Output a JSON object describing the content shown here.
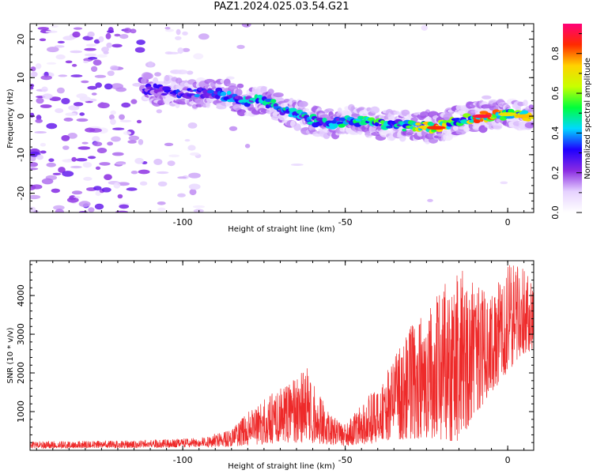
{
  "title": "PAZ1.2024.025.03.54.G21",
  "chart_data": [
    {
      "type": "heatmap",
      "xlabel": "Height of straight line (km)",
      "ylabel": "Frequency (Hz)",
      "xlim": [
        -147,
        8
      ],
      "ylim": [
        -25,
        24
      ],
      "xticks": [
        -100,
        -50,
        0
      ],
      "yticks": [
        -20,
        -10,
        0,
        10,
        20
      ],
      "colorbar": {
        "label": "Normalized spectral amplitude",
        "range": [
          0.0,
          0.95
        ],
        "ticks": [
          0.0,
          0.2,
          0.4,
          0.6,
          0.8
        ],
        "colors": [
          "#ffffff",
          "#e6d2ff",
          "#8a2be2",
          "#1f00ff",
          "#00d8ff",
          "#00ff3c",
          "#c8ff00",
          "#ffd200",
          "#ff2a00",
          "#ff0078"
        ]
      },
      "ridge": [
        {
          "x": -110,
          "y": 7,
          "a": 0.3
        },
        {
          "x": -100,
          "y": 6,
          "a": 0.35
        },
        {
          "x": -90,
          "y": 6,
          "a": 0.4
        },
        {
          "x": -80,
          "y": 4,
          "a": 0.45
        },
        {
          "x": -75,
          "y": 4,
          "a": 0.5
        },
        {
          "x": -68,
          "y": 1.5,
          "a": 0.5
        },
        {
          "x": -60,
          "y": -1,
          "a": 0.5
        },
        {
          "x": -55,
          "y": -2,
          "a": 0.45
        },
        {
          "x": -48,
          "y": -1,
          "a": 0.55
        },
        {
          "x": -40,
          "y": -2,
          "a": 0.55
        },
        {
          "x": -32,
          "y": -2.5,
          "a": 0.55
        },
        {
          "x": -22,
          "y": -3,
          "a": 0.85
        },
        {
          "x": -15,
          "y": -1,
          "a": 0.5
        },
        {
          "x": -8,
          "y": 0,
          "a": 0.9
        },
        {
          "x": 0,
          "y": 0.5,
          "a": 0.7
        },
        {
          "x": 5,
          "y": 0,
          "a": 0.75
        }
      ]
    },
    {
      "type": "line",
      "xlabel": "Height of straight line (km)",
      "ylabel": "SNR (10 * v/v)",
      "xlim": [
        -147,
        8
      ],
      "ylim": [
        0,
        4900
      ],
      "xticks": [
        -100,
        -50,
        0
      ],
      "yticks": [
        1000,
        2000,
        3000,
        4000
      ],
      "series": [
        {
          "color": "#ee2a2a",
          "envelope": [
            {
              "x": -147,
              "lo": 50,
              "hi": 230
            },
            {
              "x": -120,
              "lo": 60,
              "hi": 250
            },
            {
              "x": -95,
              "lo": 80,
              "hi": 320
            },
            {
              "x": -85,
              "lo": 100,
              "hi": 550
            },
            {
              "x": -75,
              "lo": 150,
              "hi": 1400
            },
            {
              "x": -70,
              "lo": 200,
              "hi": 1600
            },
            {
              "x": -65,
              "lo": 200,
              "hi": 1900
            },
            {
              "x": -62,
              "lo": 200,
              "hi": 2200
            },
            {
              "x": -55,
              "lo": 150,
              "hi": 1000
            },
            {
              "x": -50,
              "lo": 100,
              "hi": 700
            },
            {
              "x": -45,
              "lo": 150,
              "hi": 1200
            },
            {
              "x": -38,
              "lo": 200,
              "hi": 1900
            },
            {
              "x": -30,
              "lo": 300,
              "hi": 3200
            },
            {
              "x": -22,
              "lo": 300,
              "hi": 4000
            },
            {
              "x": -15,
              "lo": 200,
              "hi": 4800
            },
            {
              "x": -10,
              "lo": 900,
              "hi": 4300
            },
            {
              "x": -5,
              "lo": 1500,
              "hi": 4000
            },
            {
              "x": 0,
              "lo": 2000,
              "hi": 4850
            },
            {
              "x": 5,
              "lo": 2500,
              "hi": 4700
            },
            {
              "x": 8,
              "lo": 2600,
              "hi": 4200
            }
          ]
        }
      ]
    }
  ]
}
